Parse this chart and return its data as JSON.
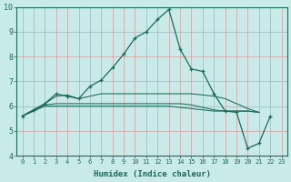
{
  "xlabel": "Humidex (Indice chaleur)",
  "background_color": "#c8eae8",
  "grid_color": "#aad4d0",
  "line_color": "#1a6b5a",
  "x_values": [
    0,
    1,
    2,
    3,
    4,
    5,
    6,
    7,
    8,
    9,
    10,
    11,
    12,
    13,
    14,
    15,
    16,
    17,
    18,
    19,
    20,
    21,
    22,
    23
  ],
  "line1_y": [
    5.6,
    5.85,
    6.1,
    6.5,
    6.4,
    6.3,
    6.8,
    7.05,
    7.55,
    8.1,
    8.75,
    9.0,
    9.5,
    9.9,
    8.3,
    7.5,
    7.4,
    6.5,
    5.8,
    5.75,
    4.3,
    4.5,
    5.6,
    null
  ],
  "line2_y": [
    5.6,
    5.85,
    6.1,
    6.4,
    6.45,
    6.3,
    6.4,
    6.5,
    6.5,
    6.5,
    6.5,
    6.5,
    6.5,
    6.5,
    6.5,
    6.5,
    6.45,
    6.4,
    6.3,
    6.1,
    5.9,
    5.75,
    null,
    null
  ],
  "line3_y": [
    5.6,
    5.82,
    6.05,
    6.1,
    6.1,
    6.1,
    6.1,
    6.1,
    6.1,
    6.1,
    6.1,
    6.1,
    6.1,
    6.1,
    6.1,
    6.05,
    5.95,
    5.85,
    5.8,
    5.8,
    5.8,
    5.75,
    null,
    null
  ],
  "line4_y": [
    5.6,
    5.8,
    6.0,
    6.0,
    6.0,
    6.0,
    6.0,
    6.0,
    6.0,
    6.0,
    6.0,
    6.0,
    6.0,
    6.0,
    5.95,
    5.9,
    5.85,
    5.8,
    5.8,
    5.8,
    5.8,
    5.75,
    null,
    null
  ],
  "xlim": [
    -0.5,
    23.5
  ],
  "ylim": [
    4,
    10
  ],
  "yticks": [
    4,
    5,
    6,
    7,
    8,
    9,
    10
  ],
  "xticks": [
    0,
    1,
    2,
    3,
    4,
    5,
    6,
    7,
    8,
    9,
    10,
    11,
    12,
    13,
    14,
    15,
    16,
    17,
    18,
    19,
    20,
    21,
    22,
    23
  ]
}
